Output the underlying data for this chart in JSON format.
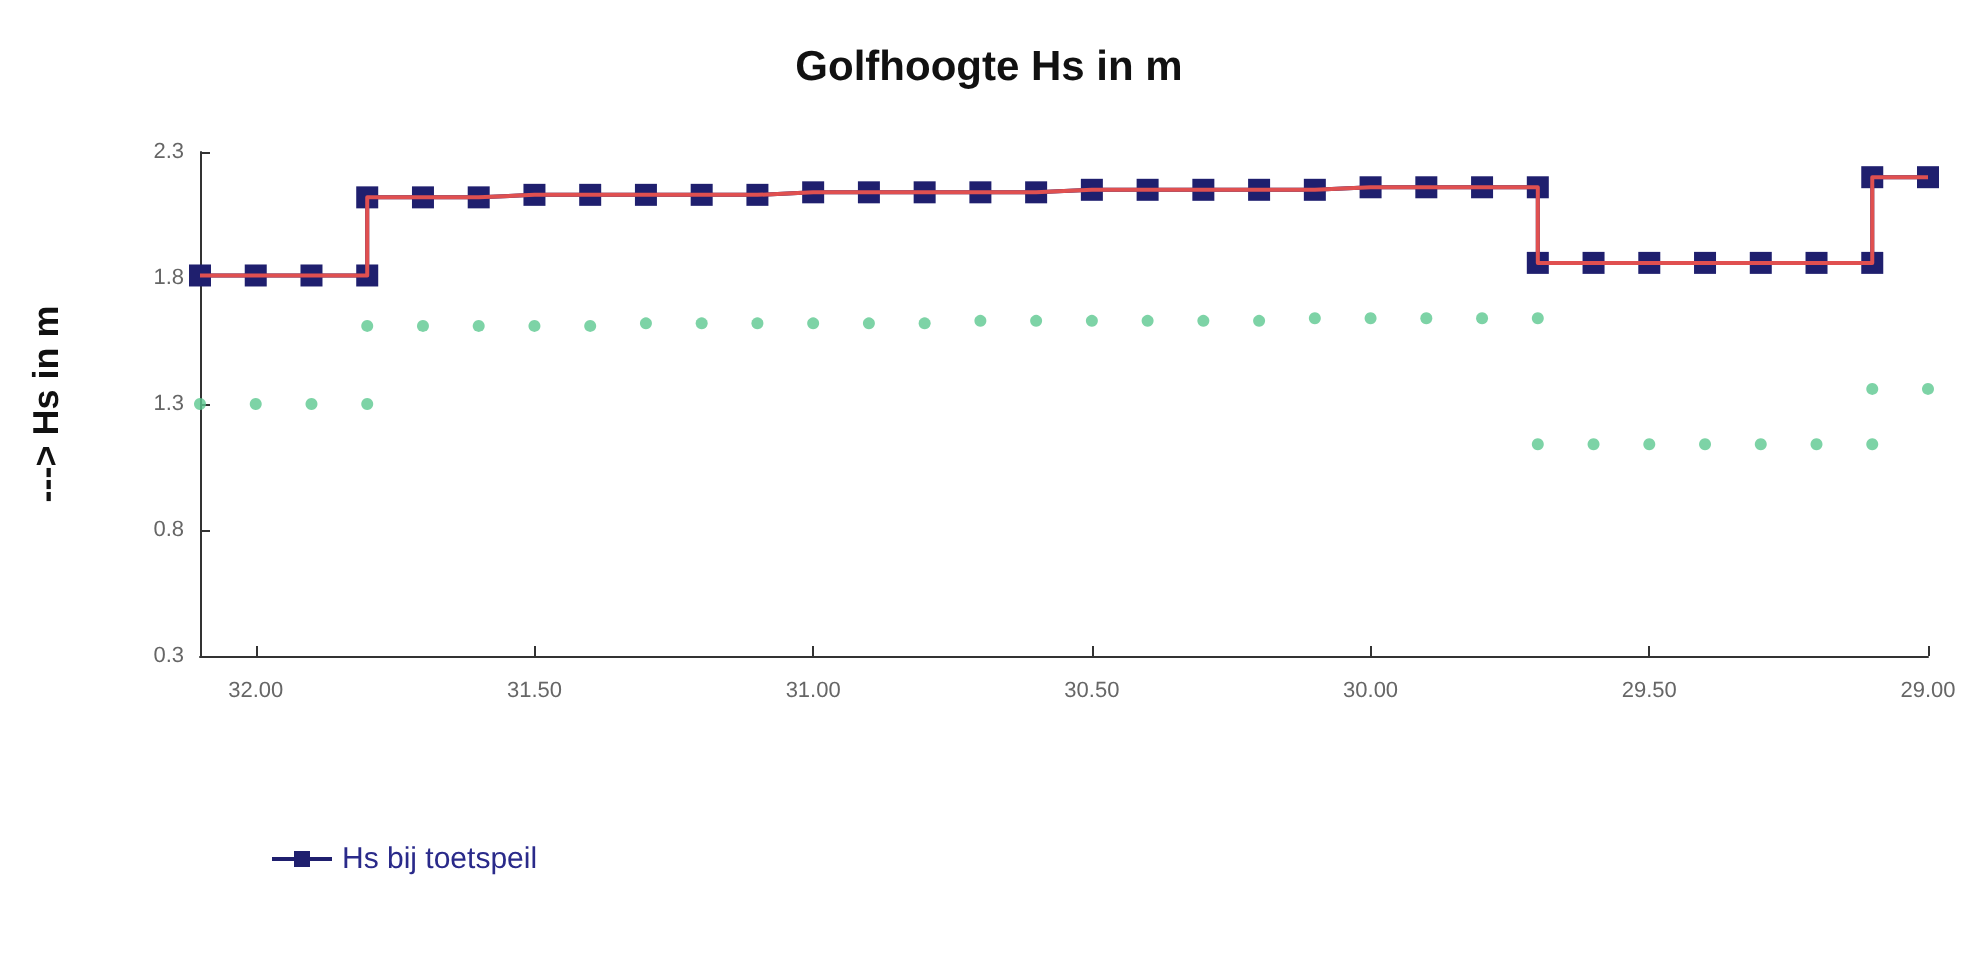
{
  "chart_data": {
    "type": "line",
    "title": "Golfhoogte Hs in m",
    "ylabel": "---> Hs in m",
    "x": [
      32.1,
      32.0,
      31.9,
      31.8,
      31.8,
      31.7,
      31.6,
      31.5,
      31.4,
      31.3,
      31.2,
      31.1,
      31.0,
      30.9,
      30.8,
      30.7,
      30.6,
      30.5,
      30.4,
      30.3,
      30.2,
      30.1,
      30.0,
      29.9,
      29.8,
      29.7,
      29.7,
      29.6,
      29.5,
      29.4,
      29.3,
      29.2,
      29.1,
      29.1,
      29.0
    ],
    "series": [
      {
        "name": "Hs bij toetspeil",
        "type": "line",
        "marker": "square",
        "color": "#1f1f6e",
        "values": [
          1.81,
          1.81,
          1.81,
          1.81,
          2.12,
          2.12,
          2.12,
          2.13,
          2.13,
          2.13,
          2.13,
          2.13,
          2.14,
          2.14,
          2.14,
          2.14,
          2.14,
          2.15,
          2.15,
          2.15,
          2.15,
          2.15,
          2.16,
          2.16,
          2.16,
          2.16,
          1.86,
          1.86,
          1.86,
          1.86,
          1.86,
          1.86,
          1.86,
          2.2,
          2.2
        ]
      },
      {
        "type": "line",
        "marker": "none",
        "color": "#e05050",
        "values": [
          1.81,
          1.81,
          1.81,
          1.81,
          2.12,
          2.12,
          2.12,
          2.13,
          2.13,
          2.13,
          2.13,
          2.13,
          2.14,
          2.14,
          2.14,
          2.14,
          2.14,
          2.15,
          2.15,
          2.15,
          2.15,
          2.15,
          2.16,
          2.16,
          2.16,
          2.16,
          1.86,
          1.86,
          1.86,
          1.86,
          1.86,
          1.86,
          1.86,
          2.2,
          2.2
        ]
      },
      {
        "type": "scatter",
        "marker": "circle",
        "color": "#5cc890",
        "values": [
          1.3,
          1.3,
          1.3,
          1.3,
          1.61,
          1.61,
          1.61,
          1.61,
          1.61,
          1.62,
          1.62,
          1.62,
          1.62,
          1.62,
          1.62,
          1.63,
          1.63,
          1.63,
          1.63,
          1.63,
          1.63,
          1.64,
          1.64,
          1.64,
          1.64,
          1.64,
          1.14,
          1.14,
          1.14,
          1.14,
          1.14,
          1.14,
          1.14,
          1.36,
          1.36
        ]
      }
    ],
    "xlim": [
      32.1,
      29.0
    ],
    "xticks": [
      {
        "value": 32,
        "label": "32.00"
      },
      {
        "value": 31.5,
        "label": "31.50"
      },
      {
        "value": 31,
        "label": "31.00"
      },
      {
        "value": 30.5,
        "label": "30.50"
      },
      {
        "value": 30,
        "label": "30.00"
      },
      {
        "value": 29.5,
        "label": "29.50"
      },
      {
        "value": 29,
        "label": "29.00"
      }
    ],
    "ylim": [
      0.3,
      2.3
    ],
    "yticks": [
      0.3,
      0.8,
      1.3,
      1.8,
      2.3
    ],
    "grid": false,
    "legend": "bottom left"
  }
}
